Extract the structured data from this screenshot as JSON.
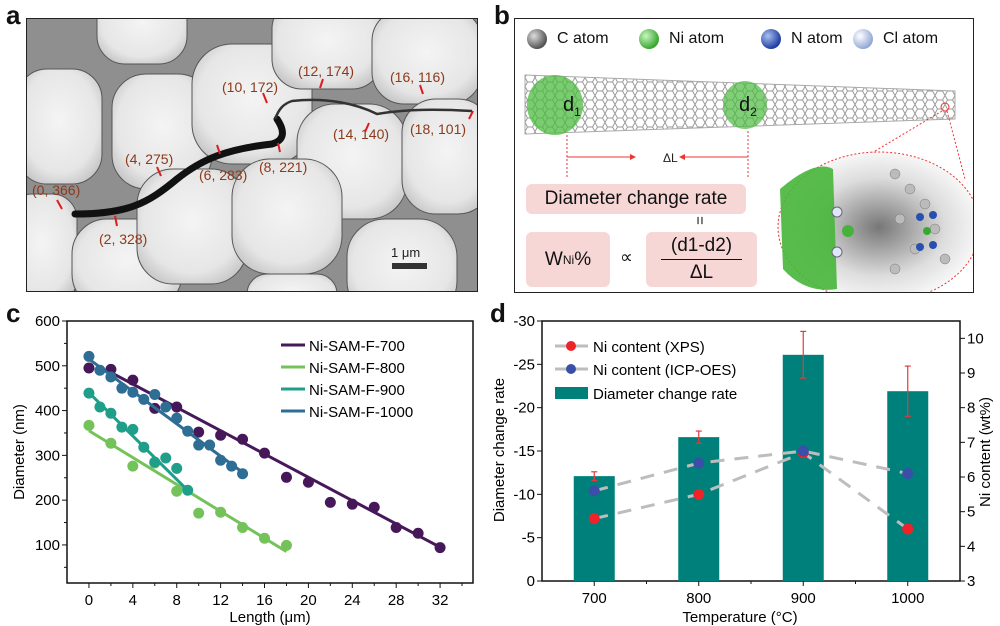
{
  "panels": {
    "a": {
      "letter": "a",
      "annotations": [
        "(0, 366)",
        "(2, 328)",
        "(4, 275)",
        "(6, 283)",
        "(8, 221)",
        "(10, 172)",
        "(12, 174)",
        "(14, 140)",
        "(16, 116)",
        "(18, 101)"
      ],
      "scale_bar_label": "1 μm"
    },
    "b": {
      "letter": "b",
      "atom_legend": [
        {
          "label": "C atom",
          "color": "#6e6e6e"
        },
        {
          "label": "Ni atom",
          "color": "#4cbb3f"
        },
        {
          "label": "N atom",
          "color": "#2a4fb0"
        },
        {
          "label": "Cl atom",
          "color": "#b9c9ea"
        }
      ],
      "d1_label": "d",
      "d1_sub": "1",
      "d2_label": "d",
      "d2_sub": "2",
      "delta_l_label": "ΔL",
      "diameter_change_rate": "Diameter change rate",
      "equals_symbol": "=",
      "w_ni_main": "W",
      "w_ni_sub": "Ni",
      "w_ni_pct": "%",
      "proportional_symbol": "∝",
      "fraction_numerator": "(d1-d2)",
      "fraction_denominator": "ΔL"
    },
    "c": {
      "letter": "c"
    },
    "d": {
      "letter": "d"
    }
  },
  "chart_data": [
    {
      "id": "c",
      "type": "scatter",
      "xlabel": "Length (μm)",
      "ylabel": "Diameter (nm)",
      "xlim": [
        -2,
        35
      ],
      "ylim": [
        15,
        600
      ],
      "xticks": [
        0,
        4,
        8,
        12,
        16,
        20,
        24,
        28,
        32
      ],
      "yticks": [
        100,
        200,
        300,
        400,
        500,
        600
      ],
      "legend_position": "top-right",
      "grid": false,
      "series": [
        {
          "name": "Ni-SAM-F-700",
          "color": "#46185a",
          "x": [
            0,
            2,
            4,
            6,
            8,
            10,
            12,
            14,
            16,
            18,
            20,
            22,
            24,
            26,
            28,
            30,
            32
          ],
          "y": [
            495,
            492,
            468,
            405,
            408,
            352,
            345,
            336,
            305,
            251,
            240,
            195,
            191,
            184,
            139,
            126,
            94
          ],
          "fit": [
            [
              2,
              485
            ],
            [
              32,
              95
            ]
          ]
        },
        {
          "name": "Ni-SAM-F-800",
          "color": "#74c35a",
          "x": [
            0,
            2,
            4,
            6,
            8,
            10,
            12,
            14,
            16,
            18
          ],
          "y": [
            367,
            327,
            276,
            283,
            220,
            171,
            173,
            139,
            115,
            99
          ],
          "fit": [
            [
              0,
              355
            ],
            [
              18,
              85
            ]
          ]
        },
        {
          "name": "Ni-SAM-F-900",
          "color": "#1f9f8a",
          "x": [
            0,
            1,
            2,
            3,
            4,
            5,
            6,
            7,
            8,
            9
          ],
          "y": [
            439,
            408,
            394,
            363,
            358,
            318,
            285,
            294,
            271,
            222
          ],
          "fit": [
            [
              0,
              440
            ],
            [
              9,
              222
            ]
          ]
        },
        {
          "name": "Ni-SAM-F-1000",
          "color": "#2e6d94",
          "x": [
            0,
            1,
            2,
            3,
            4,
            5,
            6,
            7,
            8,
            9,
            10,
            11,
            12,
            13,
            14
          ],
          "y": [
            521,
            490,
            475,
            450,
            441,
            425,
            436,
            408,
            383,
            354,
            323,
            323,
            289,
            276,
            259
          ],
          "fit": [
            [
              0,
              515
            ],
            [
              14,
              262
            ]
          ]
        }
      ]
    },
    {
      "id": "d",
      "type": "bar",
      "xlabel": "Temperature (°C)",
      "ylabel": "Diameter change rate",
      "ylabel_right": "Ni content (wt%)",
      "categories": [
        "700",
        "800",
        "900",
        "1000"
      ],
      "ylim": [
        0,
        -30
      ],
      "yticks": [
        0,
        -5,
        -10,
        -15,
        -20,
        -25,
        -30
      ],
      "ylim_right": [
        3,
        10.5
      ],
      "yticks_right": [
        3,
        4,
        5,
        6,
        7,
        8,
        9,
        10
      ],
      "legend_position": "top-left",
      "bar_series": {
        "name": "Diameter change rate",
        "color": "#00807a",
        "values": [
          -12.1,
          -16.6,
          -26.1,
          -21.9
        ],
        "errors": [
          0.5,
          0.7,
          2.7,
          2.9
        ],
        "error_color": "#e53a3a"
      },
      "line_series": [
        {
          "name": "Ni content (XPS)",
          "color": "#ee2229",
          "values": [
            4.8,
            5.5,
            6.7,
            4.5
          ]
        },
        {
          "name": "Ni content (ICP-OES)",
          "color": "#3a4fa8",
          "values": [
            5.6,
            6.4,
            6.75,
            6.1
          ]
        }
      ],
      "line_style_color": "#bdbdbd"
    }
  ]
}
